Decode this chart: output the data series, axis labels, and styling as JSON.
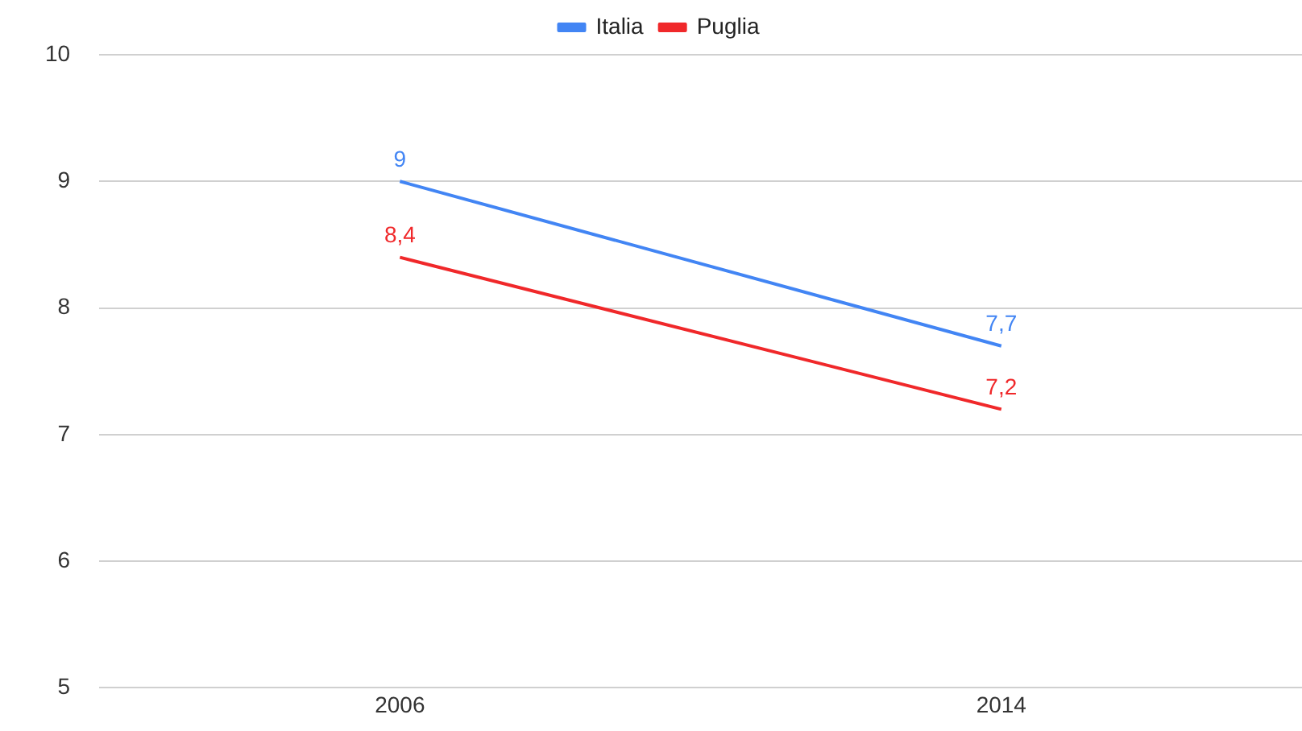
{
  "chart_data": {
    "type": "line",
    "categories": [
      "2006",
      "2014"
    ],
    "series": [
      {
        "name": "Italia",
        "color": "#4285f4",
        "values": [
          9,
          7.7
        ],
        "value_labels": [
          "9",
          "7,7"
        ]
      },
      {
        "name": "Puglia",
        "color": "#f0282a",
        "values": [
          8.4,
          7.2
        ],
        "value_labels": [
          "8,4",
          "7,2"
        ]
      }
    ],
    "ylim": [
      5,
      10
    ],
    "yticks": [
      5,
      6,
      7,
      8,
      9,
      10
    ],
    "grid": "y",
    "legend": "top",
    "marker": "none",
    "line_style": "solid"
  }
}
